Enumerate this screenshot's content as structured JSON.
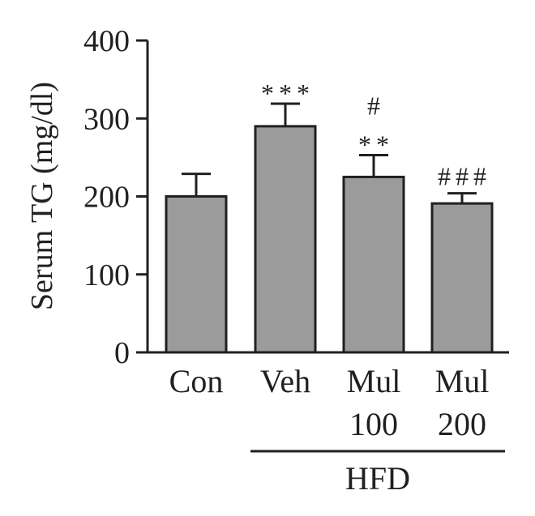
{
  "chart_data": {
    "type": "bar",
    "title": "",
    "xlabel": "",
    "ylabel": "Serum TG (mg/dl)",
    "ylim": [
      0,
      400
    ],
    "yticks": [
      0,
      100,
      200,
      300,
      400
    ],
    "grid": false,
    "categories": [
      {
        "line1": "Con",
        "line2": ""
      },
      {
        "line1": "Veh",
        "line2": ""
      },
      {
        "line1": "Mul",
        "line2": "100"
      },
      {
        "line1": "Mul",
        "line2": "200"
      }
    ],
    "values": [
      200,
      290,
      225,
      191
    ],
    "errors": [
      29,
      29,
      28,
      13
    ],
    "significance": [
      [],
      [
        "***"
      ],
      [
        "**",
        "#"
      ],
      [
        "###"
      ]
    ],
    "group_label": {
      "text": "HFD",
      "span": [
        1,
        3
      ]
    },
    "colors": {
      "bar_fill": "#9b9b9b",
      "bar_stroke": "#231f20",
      "text": "#231f20",
      "background": "#ffffff"
    }
  }
}
